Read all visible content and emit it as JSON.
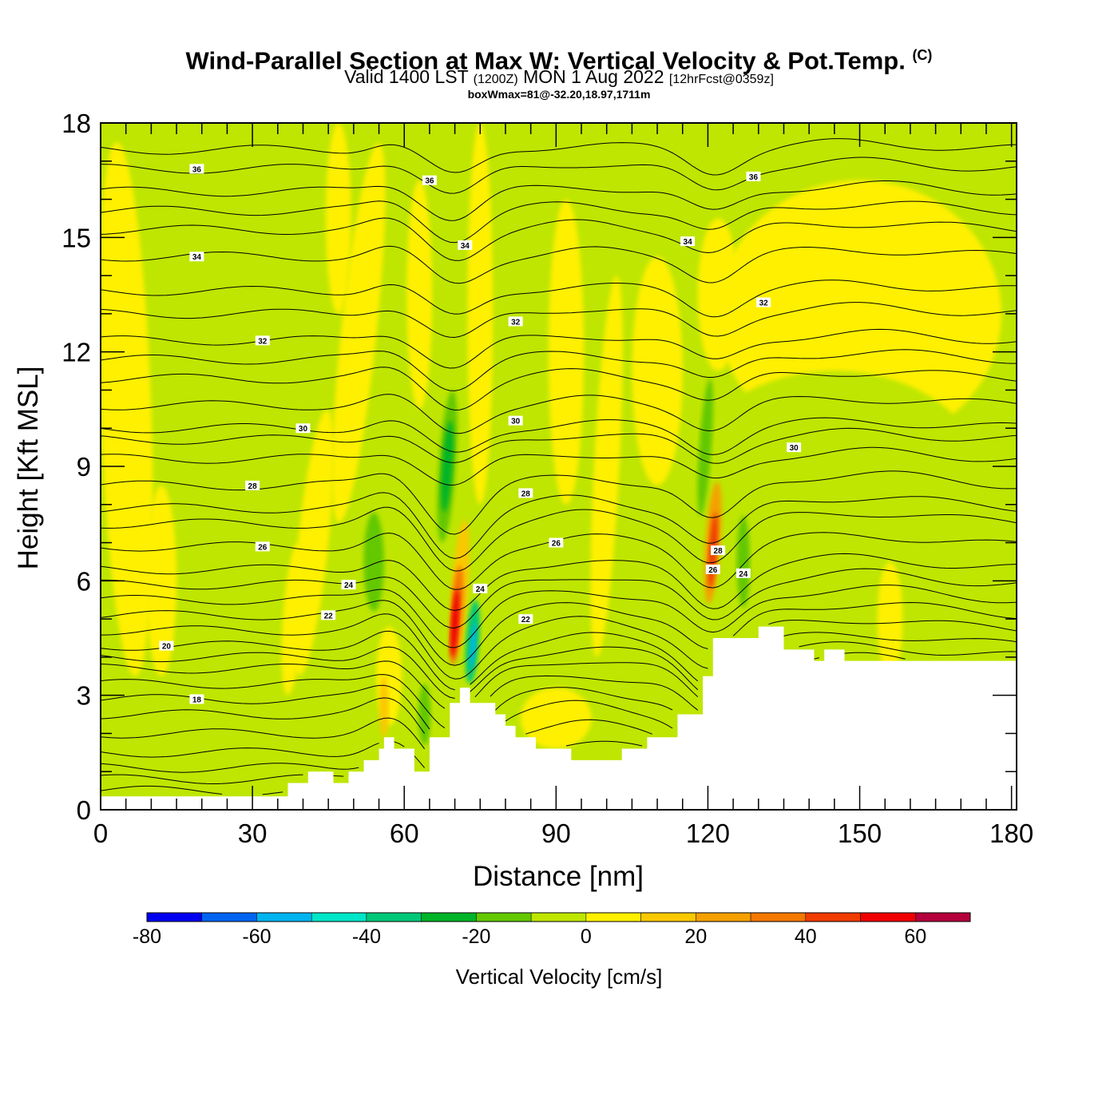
{
  "title": {
    "main": "Wind-Parallel Section at Max W: Vertical Velocity & Pot.Temp.",
    "copyright": "(C)",
    "valid_prefix": "Valid 1400 LST",
    "valid_utc": "(1200Z)",
    "valid_date": "MON 1 Aug 2022",
    "forecast": "[12hrFcst@0359z]",
    "box_info": "boxWmax=81@-32.20,18.97,1711m"
  },
  "chart_data": {
    "type": "heatmap",
    "title": "Wind-Parallel Section at Max W: Vertical Velocity & Pot.Temp.",
    "xlabel": "Distance [nm]",
    "ylabel": "Height [Kft MSL]",
    "xlim": [
      0,
      181
    ],
    "ylim": [
      0,
      18
    ],
    "x_ticks": [
      0,
      30,
      60,
      90,
      120,
      150,
      180
    ],
    "y_ticks": [
      0,
      3,
      6,
      9,
      12,
      15,
      18
    ],
    "colorbar": {
      "title": "Vertical Velocity [cm/s]",
      "tick_labels": [
        "-80",
        "-60",
        "-40",
        "-20",
        "0",
        "20",
        "40",
        "60"
      ],
      "tick_values": [
        -80,
        -60,
        -40,
        -20,
        0,
        20,
        40,
        60
      ],
      "bins": [
        {
          "min": -80,
          "max": -70,
          "color": "#0000f0"
        },
        {
          "min": -70,
          "max": -60,
          "color": "#0064f0"
        },
        {
          "min": -60,
          "max": -50,
          "color": "#00b4f0"
        },
        {
          "min": -50,
          "max": -40,
          "color": "#00e6c8"
        },
        {
          "min": -40,
          "max": -30,
          "color": "#00c878"
        },
        {
          "min": -30,
          "max": -20,
          "color": "#00b428"
        },
        {
          "min": -20,
          "max": -10,
          "color": "#64c800"
        },
        {
          "min": -10,
          "max": 0,
          "color": "#bee600"
        },
        {
          "min": 0,
          "max": 10,
          "color": "#fff000"
        },
        {
          "min": 10,
          "max": 20,
          "color": "#fac800"
        },
        {
          "min": 20,
          "max": 30,
          "color": "#f5a000"
        },
        {
          "min": 30,
          "max": 40,
          "color": "#f57800"
        },
        {
          "min": 40,
          "max": 50,
          "color": "#f03c00"
        },
        {
          "min": 50,
          "max": 60,
          "color": "#f00000"
        },
        {
          "min": 60,
          "max": 70,
          "color": "#b4003c"
        }
      ]
    },
    "background_color": "#bee600",
    "terrain_profile": {
      "x_nm": [
        0,
        37,
        37,
        41,
        41,
        46,
        46,
        49,
        49,
        52,
        52,
        55,
        55,
        56,
        56,
        58,
        58,
        62,
        62,
        65,
        65,
        69,
        69,
        71,
        71,
        73,
        73,
        78,
        78,
        80,
        80,
        82,
        82,
        86,
        86,
        93,
        93,
        103,
        103,
        108,
        108,
        114,
        114,
        119,
        119,
        121,
        121,
        130,
        130,
        135,
        135,
        141,
        141,
        143,
        143,
        147,
        147,
        181
      ],
      "z_kft": [
        0.35,
        0.35,
        0.7,
        0.7,
        1.0,
        1.0,
        0.7,
        0.7,
        1.0,
        1.0,
        1.3,
        1.3,
        1.6,
        1.6,
        1.9,
        1.9,
        1.6,
        1.6,
        1.0,
        1.0,
        1.9,
        1.9,
        2.8,
        2.8,
        3.2,
        3.2,
        2.8,
        2.8,
        2.5,
        2.5,
        2.2,
        2.2,
        1.9,
        1.9,
        1.6,
        1.6,
        1.3,
        1.3,
        1.6,
        1.6,
        1.9,
        1.9,
        2.5,
        2.5,
        3.5,
        3.5,
        4.5,
        4.5,
        4.8,
        4.8,
        4.2,
        4.2,
        3.9,
        3.9,
        4.2,
        4.2,
        3.9,
        3.9
      ]
    },
    "velocity_features": [
      {
        "x": 5,
        "z": 10.5,
        "rx": 5,
        "rz": 7.0,
        "w": 5,
        "tilt": -2
      },
      {
        "x": 12,
        "z": 6.0,
        "rx": 3,
        "rz": 2.5,
        "w": 5,
        "tilt": 0
      },
      {
        "x": 47,
        "z": 15.5,
        "rx": 2.5,
        "rz": 2.5,
        "w": 5,
        "tilt": 0
      },
      {
        "x": 51,
        "z": 12.5,
        "rx": 3.5,
        "rz": 5.0,
        "w": 5,
        "tilt": 6
      },
      {
        "x": 42,
        "z": 7.0,
        "rx": 3,
        "rz": 3.5,
        "w": 5,
        "tilt": 6
      },
      {
        "x": 38,
        "z": 5.0,
        "rx": 2,
        "rz": 2.0,
        "w": 5,
        "tilt": 4
      },
      {
        "x": 63,
        "z": 13.5,
        "rx": 2.5,
        "rz": 3.0,
        "w": 5,
        "tilt": 0
      },
      {
        "x": 75,
        "z": 13.0,
        "rx": 2.5,
        "rz": 5.0,
        "w": 5,
        "tilt": 0
      },
      {
        "x": 92,
        "z": 12.0,
        "rx": 3.5,
        "rz": 4.0,
        "w": 5,
        "tilt": 0
      },
      {
        "x": 100,
        "z": 9.0,
        "rx": 2.5,
        "rz": 5.0,
        "w": 5,
        "tilt": 3
      },
      {
        "x": 110,
        "z": 11.5,
        "rx": 5,
        "rz": 3.0,
        "w": 5,
        "tilt": 0
      },
      {
        "x": 90,
        "z": 2.4,
        "rx": 7,
        "rz": 0.8,
        "w": 5,
        "tilt": 0
      },
      {
        "x": 57,
        "z": 3.5,
        "rx": 2.5,
        "rz": 1.3,
        "w": 5,
        "tilt": 0
      },
      {
        "x": 54,
        "z": 6.5,
        "rx": 2,
        "rz": 1.3,
        "w": -15,
        "tilt": 0
      },
      {
        "x": 56,
        "z": 2.7,
        "rx": 0.9,
        "rz": 0.8,
        "w": 15,
        "tilt": 0
      },
      {
        "x": 64,
        "z": 2.5,
        "rx": 1.2,
        "rz": 0.8,
        "w": -15,
        "tilt": 0
      },
      {
        "x": 68.5,
        "z": 9.0,
        "rx": 1.7,
        "rz": 2.0,
        "w": -15,
        "tilt": 4
      },
      {
        "x": 68.5,
        "z": 9.0,
        "rx": 1.0,
        "rz": 1.2,
        "w": -25,
        "tilt": 4
      },
      {
        "x": 71,
        "z": 5.8,
        "rx": 1.6,
        "rz": 1.8,
        "w": 15,
        "tilt": 4
      },
      {
        "x": 70.3,
        "z": 5.1,
        "rx": 1.2,
        "rz": 1.3,
        "w": 35,
        "tilt": 4
      },
      {
        "x": 70.0,
        "z": 4.9,
        "rx": 0.7,
        "rz": 0.9,
        "w": 55,
        "tilt": 4
      },
      {
        "x": 73.5,
        "z": 4.4,
        "rx": 1.3,
        "rz": 1.1,
        "w": -35,
        "tilt": 4
      },
      {
        "x": 73.6,
        "z": 4.3,
        "rx": 0.5,
        "rz": 0.6,
        "w": -55,
        "tilt": 4
      },
      {
        "x": 150,
        "z": 13.0,
        "rx": 28,
        "rz": 3.5,
        "w": 5,
        "tilt": 0
      },
      {
        "x": 145,
        "z": 8.5,
        "rx": 30,
        "rz": 3.0,
        "w": -5,
        "tilt": 0
      },
      {
        "x": 122,
        "z": 13.5,
        "rx": 4,
        "rz": 2.0,
        "w": 5,
        "tilt": 0
      },
      {
        "x": 121,
        "z": 7.0,
        "rx": 1.5,
        "rz": 1.6,
        "w": 25,
        "tilt": 4
      },
      {
        "x": 121,
        "z": 6.8,
        "rx": 0.8,
        "rz": 1.0,
        "w": 45,
        "tilt": 4
      },
      {
        "x": 119.5,
        "z": 9.5,
        "rx": 1.2,
        "rz": 1.8,
        "w": -15,
        "tilt": 4
      },
      {
        "x": 127,
        "z": 6.5,
        "rx": 1.3,
        "rz": 1.2,
        "w": -15,
        "tilt": 0
      },
      {
        "x": 156,
        "z": 5.0,
        "rx": 2.5,
        "rz": 1.5,
        "w": 5,
        "tilt": 0
      }
    ],
    "theta_contours": {
      "label": "Potential Temperature",
      "levels": [
        18,
        20,
        22,
        24,
        26,
        28,
        30,
        32,
        34,
        36
      ],
      "labelled_at": [
        {
          "value": "18",
          "x": 19,
          "z": 2.9
        },
        {
          "value": "20",
          "x": 13,
          "z": 4.3
        },
        {
          "value": "22",
          "x": 45,
          "z": 5.1
        },
        {
          "value": "24",
          "x": 49,
          "z": 5.9
        },
        {
          "value": "26",
          "x": 32,
          "z": 6.9
        },
        {
          "value": "28",
          "x": 30,
          "z": 8.5
        },
        {
          "value": "30",
          "x": 40,
          "z": 10.0
        },
        {
          "value": "32",
          "x": 32,
          "z": 12.3
        },
        {
          "value": "34",
          "x": 19,
          "z": 14.5
        },
        {
          "value": "36",
          "x": 19,
          "z": 16.8
        },
        {
          "value": "24",
          "x": 75,
          "z": 5.8
        },
        {
          "value": "22",
          "x": 84,
          "z": 5.0
        },
        {
          "value": "26",
          "x": 90,
          "z": 7.0
        },
        {
          "value": "28",
          "x": 84,
          "z": 8.3
        },
        {
          "value": "30",
          "x": 82,
          "z": 10.2
        },
        {
          "value": "32",
          "x": 82,
          "z": 12.8
        },
        {
          "value": "34",
          "x": 72,
          "z": 14.8
        },
        {
          "value": "36",
          "x": 65,
          "z": 16.5
        },
        {
          "value": "28",
          "x": 122,
          "z": 6.8
        },
        {
          "value": "26",
          "x": 121,
          "z": 6.3
        },
        {
          "value": "24",
          "x": 127,
          "z": 6.2
        },
        {
          "value": "30",
          "x": 137,
          "z": 9.5
        },
        {
          "value": "32",
          "x": 131,
          "z": 13.3
        },
        {
          "value": "34",
          "x": 116,
          "z": 14.9
        },
        {
          "value": "36",
          "x": 129,
          "z": 16.6
        }
      ]
    }
  }
}
